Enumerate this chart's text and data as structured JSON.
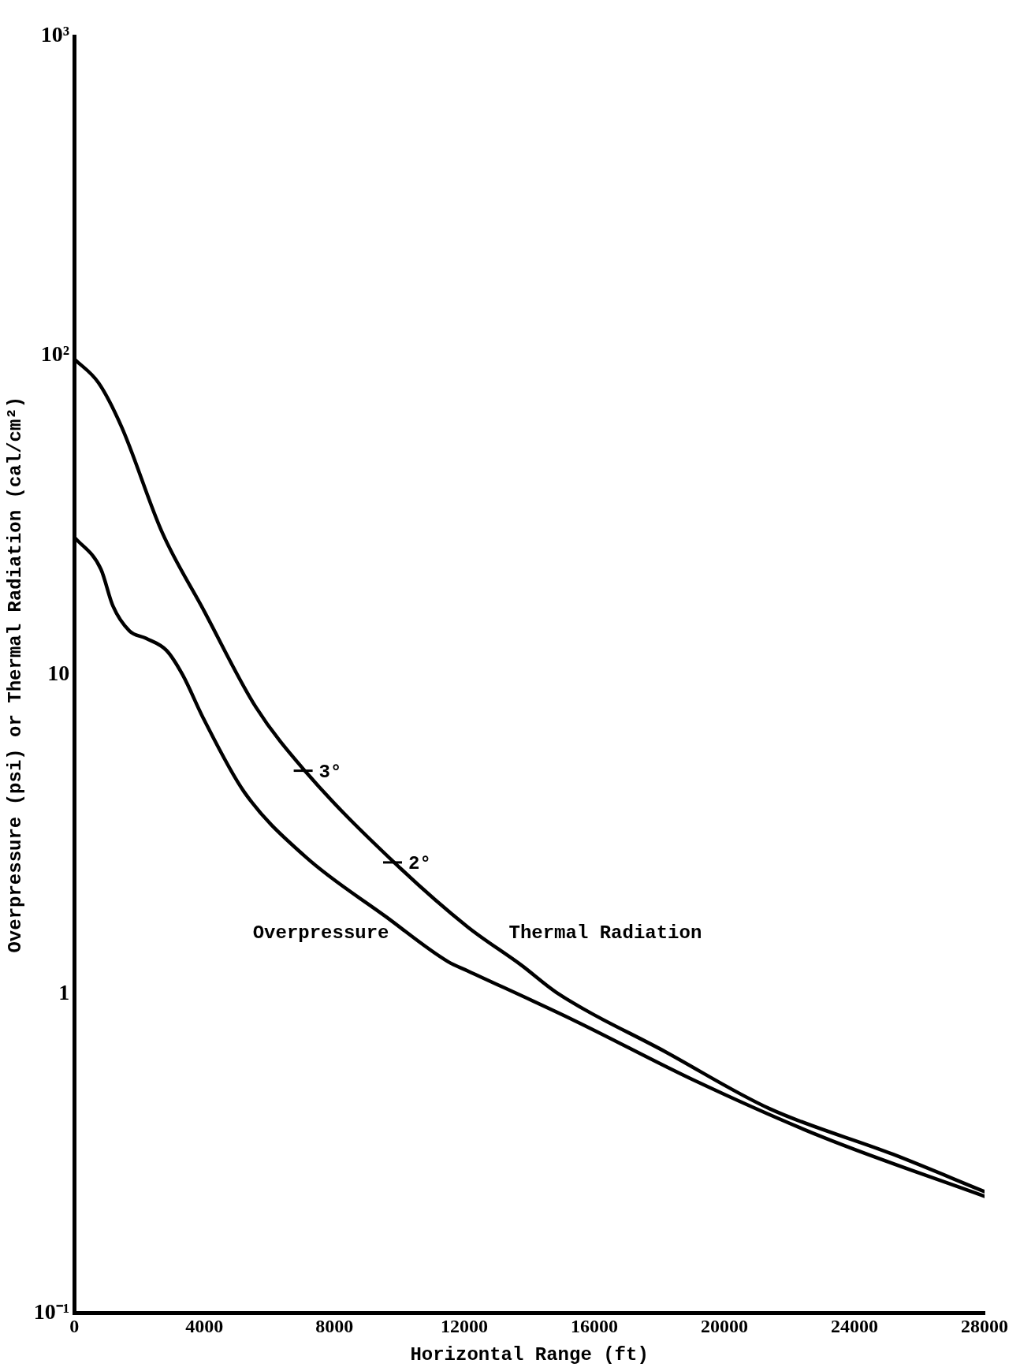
{
  "chart_data": {
    "type": "line",
    "xlabel": "Horizontal Range (ft)",
    "ylabel": "Overpressure (psi) or Thermal Radiation (cal/cm²)",
    "log": "y",
    "xlim": [
      0,
      28000
    ],
    "xticks": [
      0,
      4000,
      8000,
      12000,
      16000,
      20000,
      24000,
      28000
    ],
    "ylim": [
      0.1,
      1000
    ],
    "yticks": [
      {
        "value": 0.1,
        "label": "10⁻¹"
      },
      1,
      10,
      {
        "value": 100,
        "label": "10²"
      },
      {
        "value": 1000,
        "label": "10³"
      }
    ],
    "grid": false,
    "legend": false,
    "marker": "none",
    "line_style": "solid",
    "series": [
      {
        "name": "Thermal Radiation",
        "color": "#000000",
        "x": [
          0,
          750,
          1460,
          2710,
          3970,
          5590,
          7090,
          9840,
          12100,
          13750,
          14830,
          18210,
          21380,
          25190,
          28000
        ],
        "values": [
          97.5,
          82,
          59.6,
          27.8,
          16.0,
          7.9,
          5.0,
          2.58,
          1.62,
          1.23,
          1.01,
          0.656,
          0.437,
          0.314,
          0.24
        ]
      },
      {
        "name": "Overpressure",
        "color": "#000000",
        "x": [
          0,
          820,
          1190,
          1700,
          2200,
          2840,
          3330,
          3970,
          5220,
          7090,
          9600,
          11500,
          12100,
          15370,
          19080,
          23010,
          28000
        ],
        "values": [
          27.0,
          21.4,
          16.4,
          13.7,
          13.0,
          11.9,
          10.0,
          7.3,
          4.3,
          2.7,
          1.74,
          1.26,
          1.18,
          0.826,
          0.535,
          0.356,
          0.232
        ]
      }
    ],
    "annotations": [
      {
        "text": "3°",
        "x": 7090,
        "y": 5.0
      },
      {
        "text": "2°",
        "x": 9840,
        "y": 2.58
      }
    ]
  }
}
